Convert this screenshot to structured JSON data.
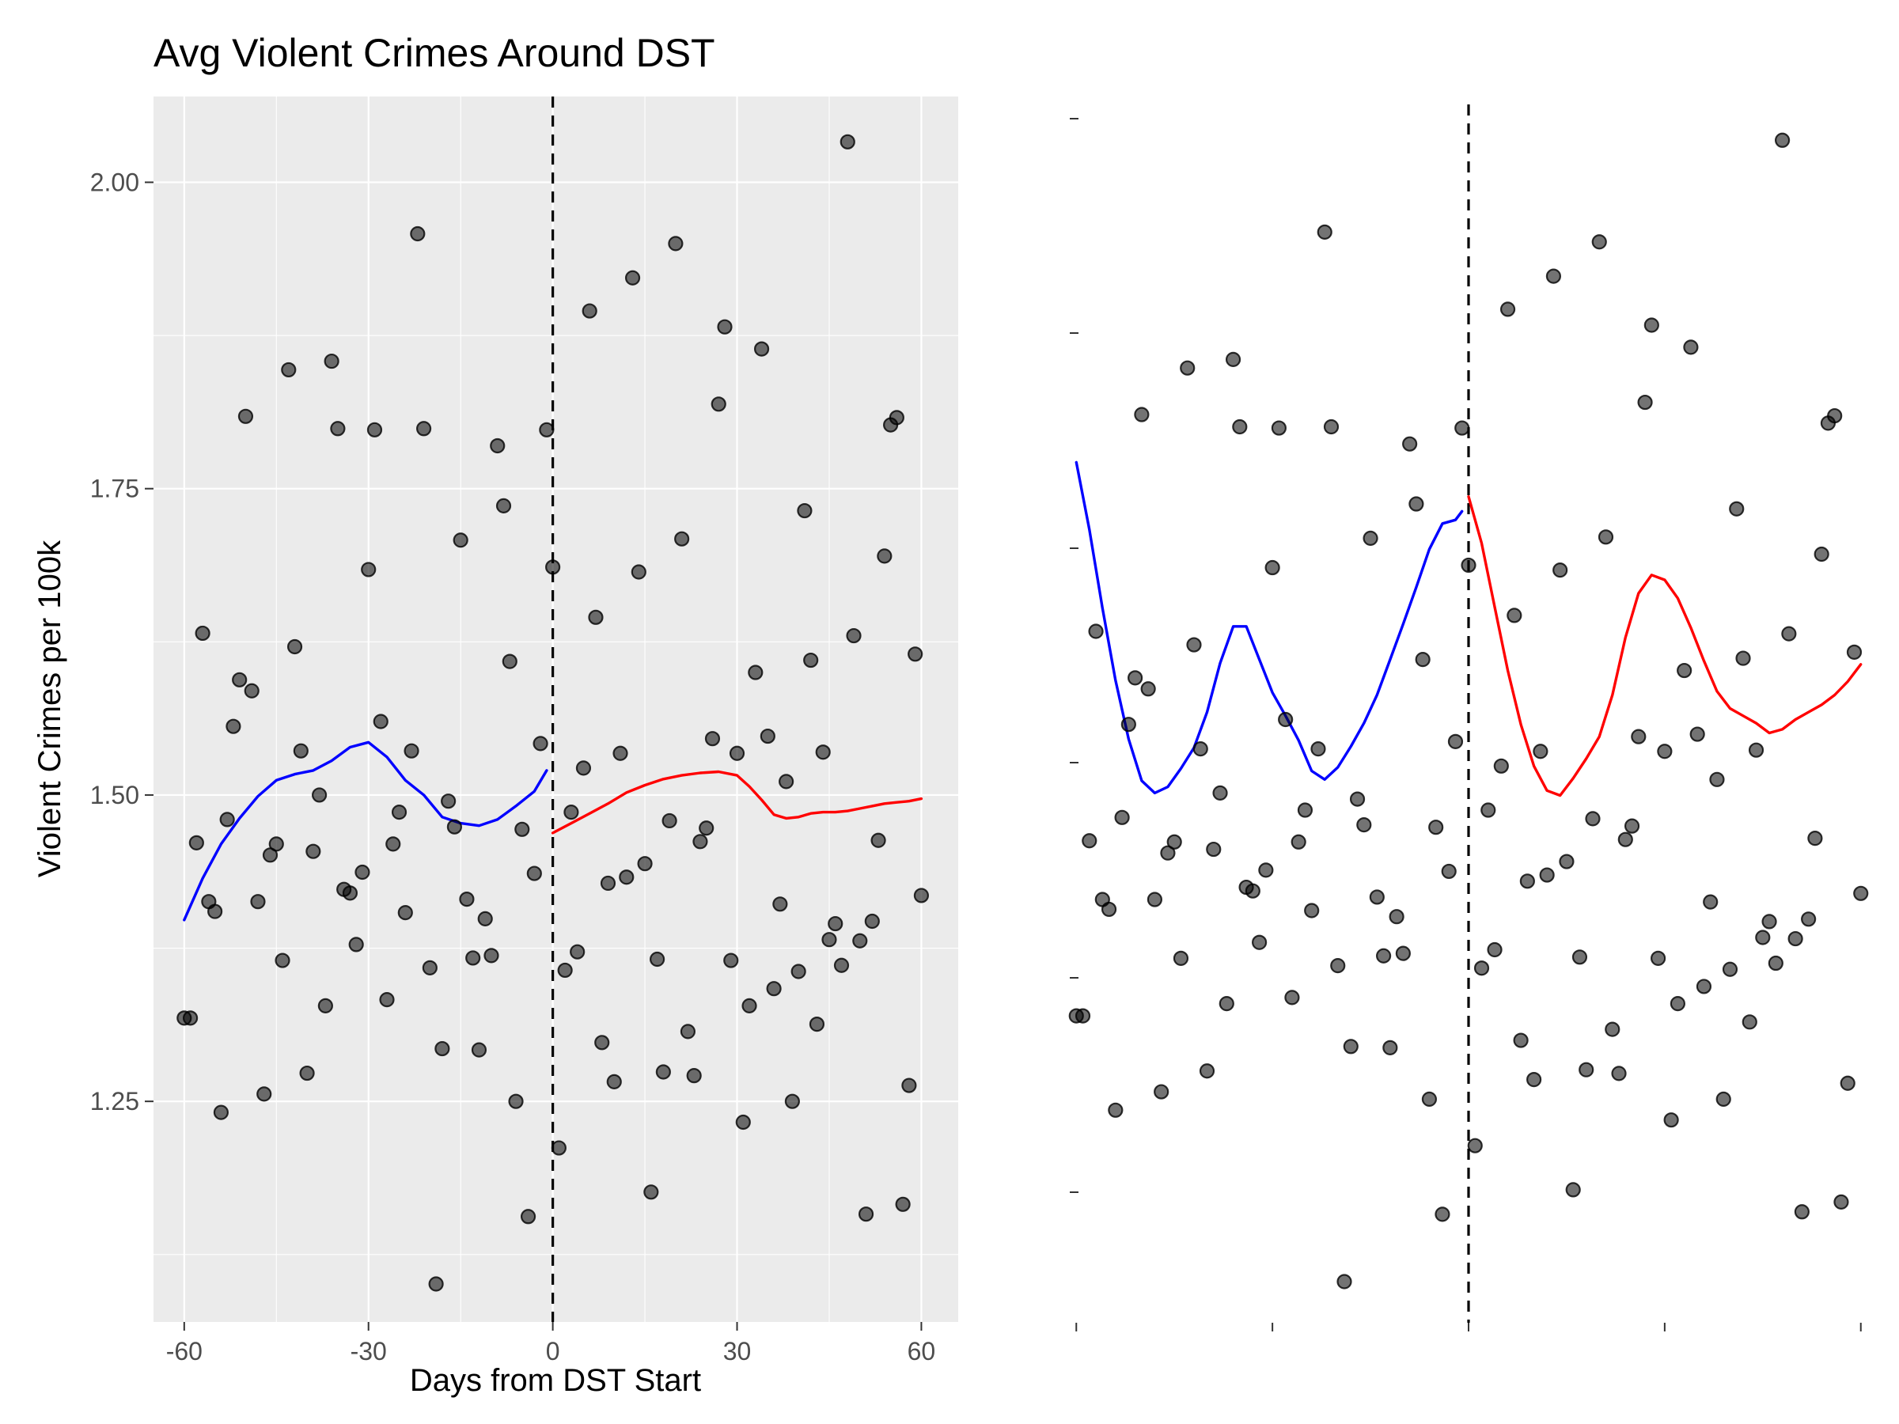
{
  "chart_data": [
    {
      "type": "scatter",
      "title": "Avg Violent Crimes Around DST",
      "xlabel": "Days from DST Start",
      "ylabel": "Violent Crimes per 100k",
      "xlim": [
        -65,
        66
      ],
      "ylim": [
        1.07,
        2.07
      ],
      "x_ticks": [
        -60,
        -30,
        0,
        30,
        60
      ],
      "x_tick_labels": [
        "-60",
        "-30",
        "0",
        "30",
        "60"
      ],
      "y_ticks": [
        1.25,
        1.5,
        1.75,
        2.0
      ],
      "y_tick_labels": [
        "1.25",
        "1.50",
        "1.75",
        "2.00"
      ],
      "grid": true,
      "vline_x": 0,
      "colors": {
        "before": "#0000ff",
        "after": "#ff0000",
        "points": "#000000",
        "vline": "#000000",
        "panel": "#ebebeb"
      },
      "points": {
        "x": [
          -60,
          -59,
          -58,
          -57,
          -56,
          -55,
          -54,
          -53,
          -52,
          -51,
          -50,
          -49,
          -48,
          -47,
          -46,
          -45,
          -44,
          -43,
          -42,
          -41,
          -40,
          -39,
          -38,
          -37,
          -36,
          -35,
          -34,
          -33,
          -32,
          -31,
          -30,
          -29,
          -28,
          -27,
          -26,
          -25,
          -24,
          -23,
          -22,
          -21,
          -20,
          -19,
          -18,
          -17,
          -16,
          -15,
          -14,
          -13,
          -12,
          -11,
          -10,
          -9,
          -8,
          -7,
          -6,
          -5,
          -4,
          -3,
          -2,
          -1,
          0,
          1,
          2,
          3,
          4,
          5,
          6,
          7,
          8,
          9,
          10,
          11,
          12,
          13,
          14,
          15,
          16,
          17,
          18,
          19,
          20,
          21,
          22,
          23,
          24,
          25,
          26,
          27,
          28,
          29,
          30,
          31,
          32,
          33,
          34,
          35,
          36,
          37,
          38,
          39,
          40,
          41,
          42,
          43,
          44,
          45,
          46,
          47,
          48,
          49,
          50,
          51,
          52,
          53,
          54,
          55,
          56,
          57,
          58,
          59,
          60
        ],
        "y": [
          1.318,
          1.318,
          1.461,
          1.632,
          1.413,
          1.405,
          1.241,
          1.48,
          1.556,
          1.594,
          1.809,
          1.585,
          1.413,
          1.256,
          1.451,
          1.46,
          1.365,
          1.847,
          1.621,
          1.536,
          1.273,
          1.454,
          1.5,
          1.328,
          1.854,
          1.799,
          1.423,
          1.42,
          1.378,
          1.437,
          1.684,
          1.798,
          1.56,
          1.333,
          1.46,
          1.486,
          1.404,
          1.536,
          1.958,
          1.799,
          1.359,
          1.101,
          1.293,
          1.495,
          1.474,
          1.708,
          1.415,
          1.367,
          1.292,
          1.399,
          1.369,
          1.785,
          1.736,
          1.609,
          1.25,
          1.472,
          1.156,
          1.436,
          1.542,
          1.798,
          1.686,
          1.212,
          1.357,
          1.486,
          1.372,
          1.522,
          1.895,
          1.645,
          1.298,
          1.428,
          1.266,
          1.534,
          1.433,
          1.922,
          1.682,
          1.444,
          1.176,
          1.366,
          1.274,
          1.479,
          1.95,
          1.709,
          1.307,
          1.271,
          1.462,
          1.473,
          1.546,
          1.819,
          1.882,
          1.365,
          1.534,
          1.233,
          1.328,
          1.6,
          1.864,
          1.548,
          1.342,
          1.411,
          1.511,
          1.25,
          1.356,
          1.732,
          1.61,
          1.313,
          1.535,
          1.382,
          1.395,
          1.361,
          2.033,
          1.63,
          1.381,
          1.158,
          1.397,
          1.463,
          1.695,
          1.802,
          1.808,
          1.166,
          1.263,
          1.615,
          1.418
        ]
      },
      "smooth_before": {
        "x": [
          -60,
          -57,
          -54,
          -51,
          -48,
          -45,
          -42,
          -39,
          -36,
          -33,
          -30,
          -27,
          -24,
          -21,
          -18,
          -15,
          -12,
          -9,
          -6,
          -3,
          -1
        ],
        "y": [
          1.398,
          1.432,
          1.46,
          1.481,
          1.499,
          1.512,
          1.517,
          1.52,
          1.528,
          1.539,
          1.543,
          1.531,
          1.512,
          1.5,
          1.482,
          1.477,
          1.475,
          1.48,
          1.491,
          1.503,
          1.52
        ]
      },
      "smooth_after": {
        "x": [
          0,
          3,
          6,
          9,
          12,
          15,
          18,
          21,
          24,
          27,
          30,
          32,
          34,
          36,
          38,
          40,
          42,
          44,
          46,
          48,
          50,
          52,
          54,
          56,
          58,
          60
        ],
        "y": [
          1.469,
          1.477,
          1.485,
          1.493,
          1.502,
          1.508,
          1.513,
          1.516,
          1.518,
          1.519,
          1.516,
          1.507,
          1.496,
          1.484,
          1.481,
          1.482,
          1.485,
          1.486,
          1.486,
          1.487,
          1.489,
          1.491,
          1.493,
          1.494,
          1.495,
          1.497
        ]
      }
    },
    {
      "type": "scatter",
      "title": "",
      "xlabel": "",
      "ylabel": "",
      "axis_text": false,
      "grid": false,
      "note": "Same observations as the left panel; 5-day ticks hidden; blue/red smooths are wiggly local fits",
      "points_ref": "chart_data.0.points",
      "smooth_before": {
        "x": [
          -60,
          -58,
          -56,
          -54,
          -52,
          -50,
          -48,
          -46,
          -44,
          -42,
          -40,
          -38,
          -36,
          -34,
          -32,
          -30,
          -28,
          -26,
          -24,
          -22,
          -20,
          -18,
          -16,
          -14,
          -12,
          -10,
          -8,
          -6,
          -4,
          -2,
          -1
        ],
        "y": [
          1.77,
          1.715,
          1.651,
          1.592,
          1.544,
          1.51,
          1.5,
          1.505,
          1.52,
          1.537,
          1.566,
          1.606,
          1.636,
          1.636,
          1.609,
          1.582,
          1.563,
          1.543,
          1.518,
          1.511,
          1.521,
          1.538,
          1.557,
          1.58,
          1.609,
          1.638,
          1.668,
          1.699,
          1.72,
          1.723,
          1.73
        ]
      },
      "smooth_after": {
        "x": [
          0,
          2,
          4,
          6,
          8,
          10,
          12,
          14,
          16,
          18,
          20,
          22,
          24,
          26,
          28,
          30,
          32,
          34,
          36,
          38,
          40,
          42,
          44,
          46,
          48,
          50,
          52,
          54,
          56,
          58,
          60
        ],
        "y": [
          1.742,
          1.704,
          1.652,
          1.6,
          1.556,
          1.522,
          1.502,
          1.498,
          1.512,
          1.528,
          1.546,
          1.58,
          1.627,
          1.663,
          1.678,
          1.674,
          1.659,
          1.635,
          1.608,
          1.583,
          1.569,
          1.563,
          1.557,
          1.549,
          1.552,
          1.56,
          1.566,
          1.572,
          1.58,
          1.591,
          1.605
        ]
      }
    }
  ]
}
